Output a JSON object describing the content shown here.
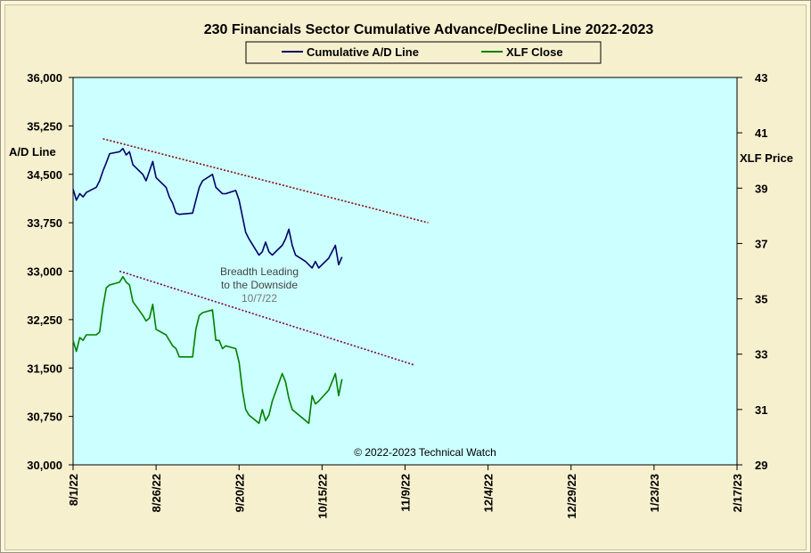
{
  "chart_data": {
    "type": "line",
    "title": "230 Financials  Sector Cumulative  Advance/Decline  Line 2022-2023",
    "ylabel_left": "A/D Line",
    "ylabel_right": "XLF Price",
    "y_left_range": [
      30000,
      36000
    ],
    "y_right_range": [
      29,
      43
    ],
    "y_left_ticks": [
      "30,000",
      "30,750",
      "31,500",
      "32,250",
      "33,000",
      "33,750",
      "34,500",
      "35,250",
      "36,000"
    ],
    "y_right_ticks": [
      "29",
      "31",
      "33",
      "35",
      "37",
      "39",
      "41",
      "43"
    ],
    "x_ticks": [
      "8/1/22",
      "8/26/22",
      "9/20/22",
      "10/15/22",
      "11/9/22",
      "12/4/22",
      "12/29/22",
      "1/23/23",
      "2/17/23"
    ],
    "grid": false,
    "legend_position": "top-center",
    "plot_background": "#ccffff",
    "series": [
      {
        "name": "Cumulative A/D Line",
        "axis": "left",
        "color": "#000066",
        "x": [
          "2022-08-01",
          "2022-08-02",
          "2022-08-03",
          "2022-08-04",
          "2022-08-05",
          "2022-08-08",
          "2022-08-09",
          "2022-08-10",
          "2022-08-11",
          "2022-08-12",
          "2022-08-15",
          "2022-08-16",
          "2022-08-17",
          "2022-08-18",
          "2022-08-19",
          "2022-08-22",
          "2022-08-23",
          "2022-08-24",
          "2022-08-25",
          "2022-08-26",
          "2022-08-29",
          "2022-08-30",
          "2022-08-31",
          "2022-09-01",
          "2022-09-02",
          "2022-09-06",
          "2022-09-07",
          "2022-09-08",
          "2022-09-09",
          "2022-09-12",
          "2022-09-13",
          "2022-09-14",
          "2022-09-15",
          "2022-09-16",
          "2022-09-19",
          "2022-09-20",
          "2022-09-21",
          "2022-09-22",
          "2022-09-23",
          "2022-09-26",
          "2022-09-27",
          "2022-09-28",
          "2022-09-29",
          "2022-09-30",
          "2022-10-03",
          "2022-10-04",
          "2022-10-05",
          "2022-10-06",
          "2022-10-07",
          "2022-10-10",
          "2022-10-11",
          "2022-10-12",
          "2022-10-13",
          "2022-10-14",
          "2022-10-17",
          "2022-10-18",
          "2022-10-19",
          "2022-10-20",
          "2022-10-21"
        ],
        "values": [
          34270,
          34100,
          34200,
          34150,
          34220,
          34300,
          34400,
          34550,
          34680,
          34820,
          34850,
          34900,
          34800,
          34850,
          34650,
          34500,
          34400,
          34550,
          34700,
          34450,
          34300,
          34150,
          34050,
          33900,
          33880,
          33900,
          34100,
          34300,
          34400,
          34500,
          34300,
          34250,
          34200,
          34200,
          34250,
          34100,
          33850,
          33600,
          33500,
          33250,
          33300,
          33450,
          33300,
          33250,
          33400,
          33500,
          33650,
          33400,
          33250,
          33150,
          33100,
          33050,
          33150,
          33050,
          33200,
          33300,
          33400,
          33100,
          33220
        ]
      },
      {
        "name": "XLF Close",
        "axis": "right",
        "color": "#008000",
        "x": [
          "2022-08-01",
          "2022-08-02",
          "2022-08-03",
          "2022-08-04",
          "2022-08-05",
          "2022-08-08",
          "2022-08-09",
          "2022-08-10",
          "2022-08-11",
          "2022-08-12",
          "2022-08-15",
          "2022-08-16",
          "2022-08-17",
          "2022-08-18",
          "2022-08-19",
          "2022-08-22",
          "2022-08-23",
          "2022-08-24",
          "2022-08-25",
          "2022-08-26",
          "2022-08-29",
          "2022-08-30",
          "2022-08-31",
          "2022-09-01",
          "2022-09-02",
          "2022-09-06",
          "2022-09-07",
          "2022-09-08",
          "2022-09-09",
          "2022-09-12",
          "2022-09-13",
          "2022-09-14",
          "2022-09-15",
          "2022-09-16",
          "2022-09-19",
          "2022-09-20",
          "2022-09-21",
          "2022-09-22",
          "2022-09-23",
          "2022-09-26",
          "2022-09-27",
          "2022-09-28",
          "2022-09-29",
          "2022-09-30",
          "2022-10-03",
          "2022-10-04",
          "2022-10-05",
          "2022-10-06",
          "2022-10-07",
          "2022-10-10",
          "2022-10-11",
          "2022-10-12",
          "2022-10-13",
          "2022-10-14",
          "2022-10-17",
          "2022-10-18",
          "2022-10-19",
          "2022-10-20",
          "2022-10-21"
        ],
        "values": [
          33.5,
          33.1,
          33.6,
          33.5,
          33.7,
          33.7,
          33.8,
          34.7,
          35.4,
          35.5,
          35.6,
          35.8,
          35.6,
          35.5,
          34.9,
          34.4,
          34.2,
          34.3,
          34.8,
          33.9,
          33.7,
          33.5,
          33.3,
          33.2,
          32.9,
          32.9,
          33.9,
          34.4,
          34.5,
          34.6,
          33.5,
          33.5,
          33.2,
          33.3,
          33.2,
          32.7,
          31.7,
          31.0,
          30.8,
          30.5,
          31.0,
          30.6,
          30.8,
          31.3,
          32.3,
          32.0,
          31.4,
          31.0,
          30.9,
          30.6,
          30.5,
          31.5,
          31.2,
          31.3,
          31.7,
          32.0,
          32.3,
          31.5,
          32.1
        ]
      }
    ],
    "trendlines": [
      {
        "axis": "left",
        "x": [
          "2022-08-10",
          "2022-11-16"
        ],
        "values": [
          35050,
          33750
        ],
        "color": "#8b0000"
      },
      {
        "axis": "right",
        "x": [
          "2022-08-15",
          "2022-11-12"
        ],
        "values": [
          36.0,
          32.6
        ],
        "color": "#800040"
      }
    ],
    "annotations": [
      "Breadth Leading",
      "to the Downside",
      "10/7/22"
    ],
    "copyright": "© 2022-2023  Technical Watch"
  }
}
